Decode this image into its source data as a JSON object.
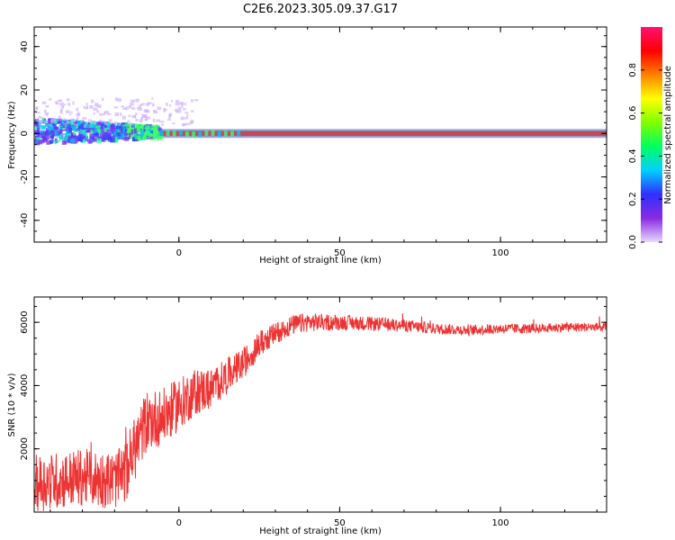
{
  "title": "C2E6.2023.305.09.37.G17",
  "colors": {
    "axis": "#000000",
    "snr_line": "#ee3333",
    "band_center": "#ff2a5a",
    "band_edge": "#00b050"
  },
  "chart_data": [
    {
      "type": "heatmap",
      "xlabel": "Height of straight line (km)",
      "ylabel": "Frequency (Hz)",
      "xlim": [
        -45,
        133
      ],
      "ylim": [
        -50,
        49
      ],
      "x_ticks": [
        0,
        50,
        100
      ],
      "y_ticks": [
        40,
        20,
        0,
        -20,
        -40
      ],
      "colorbar": {
        "label": "Normalized spectral amplitude",
        "range": [
          0,
          1
        ],
        "ticks": [
          0.0,
          0.2,
          0.4,
          0.6,
          0.8
        ],
        "colormap": [
          "#e8d8ff",
          "#8a2be2",
          "#3030ff",
          "#00d0ff",
          "#00ff60",
          "#80ff00",
          "#ffff00",
          "#ff8000",
          "#ff0000",
          "#ff1070"
        ]
      },
      "description_points": {
        "noisy_region_x": [
          -45,
          -12
        ],
        "noisy_spread_hz": [
          -6,
          14
        ],
        "tone_frequency_hz": 0,
        "tone_start_x": -12
      }
    },
    {
      "type": "line",
      "xlabel": "Height of straight line (km)",
      "ylabel": "SNR (10 * v/v)",
      "xlim": [
        -45,
        133
      ],
      "ylim": [
        0,
        6800
      ],
      "x_ticks": [
        0,
        50,
        100
      ],
      "y_ticks": [
        2000,
        4000,
        6000
      ],
      "trend": {
        "x": [
          -45,
          -30,
          -20,
          -17,
          -10,
          -5,
          0,
          5,
          10,
          15,
          20,
          25,
          30,
          35,
          40,
          50,
          60,
          70,
          80,
          90,
          100,
          110,
          120,
          133
        ],
        "y": [
          900,
          1100,
          1000,
          1200,
          2900,
          3000,
          3400,
          3800,
          3900,
          4300,
          4700,
          5300,
          5650,
          5900,
          6000,
          6000,
          5950,
          5900,
          5800,
          5750,
          5800,
          5800,
          5850,
          5850
        ]
      },
      "noise_amplitude": {
        "x": [
          -45,
          -17,
          -16,
          0,
          15,
          30,
          50,
          80,
          133
        ],
        "amp": [
          1300,
          1300,
          1500,
          1200,
          800,
          500,
          350,
          250,
          200
        ]
      }
    }
  ]
}
